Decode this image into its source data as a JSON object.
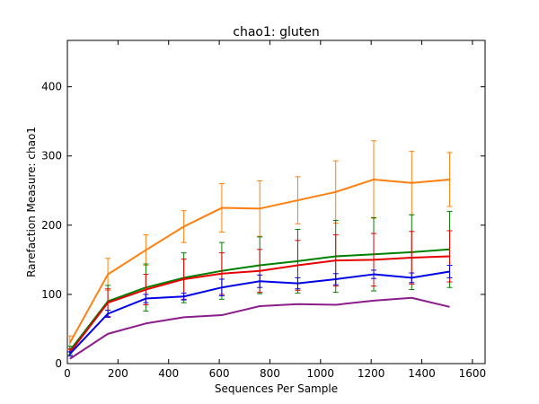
{
  "chart_data": {
    "type": "line",
    "title": "chao1: gluten",
    "xlabel": "Sequences Per Sample",
    "ylabel": "Rarefaction Measure: chao1",
    "xlim": [
      0,
      1650
    ],
    "ylim": [
      0,
      467
    ],
    "xticks": [
      0,
      200,
      400,
      600,
      800,
      1000,
      1200,
      1400,
      1600
    ],
    "yticks": [
      0,
      100,
      200,
      300,
      400
    ],
    "x": [
      10,
      160,
      310,
      460,
      610,
      760,
      910,
      1060,
      1210,
      1360,
      1510
    ],
    "series": [
      {
        "color": "#ff7f0e",
        "values": [
          30,
          129,
          164,
          198,
          225,
          224,
          236,
          248,
          266,
          261,
          266
        ],
        "errors": [
          10,
          23,
          22,
          23,
          35,
          40,
          34,
          45,
          56,
          46,
          39
        ]
      },
      {
        "color": "#008000",
        "values": [
          19,
          90,
          110,
          124,
          134,
          142,
          148,
          155,
          158,
          161,
          165
        ],
        "errors": [
          6,
          23,
          34,
          36,
          41,
          41,
          46,
          52,
          53,
          54,
          55
        ]
      },
      {
        "color": "#e60000",
        "values": [
          16,
          88,
          107,
          122,
          130,
          134,
          142,
          149,
          150,
          153,
          155
        ],
        "errors": [
          5,
          20,
          22,
          29,
          30,
          31,
          36,
          37,
          38,
          38,
          37
        ]
      },
      {
        "color": "#0000e6",
        "values": [
          14,
          72,
          94,
          97,
          110,
          119,
          116,
          122,
          129,
          124,
          133
        ],
        "errors": [
          3,
          5,
          6,
          5,
          12,
          9,
          8,
          8,
          6,
          7,
          9
        ]
      },
      {
        "color": "#8b1c8b",
        "values": [
          7,
          43,
          58,
          67,
          70,
          83,
          86,
          85,
          91,
          95,
          82
        ],
        "errors": [
          0,
          0,
          0,
          0,
          0,
          0,
          0,
          0,
          0,
          0,
          0
        ]
      }
    ],
    "grid": false,
    "legend": "none"
  }
}
